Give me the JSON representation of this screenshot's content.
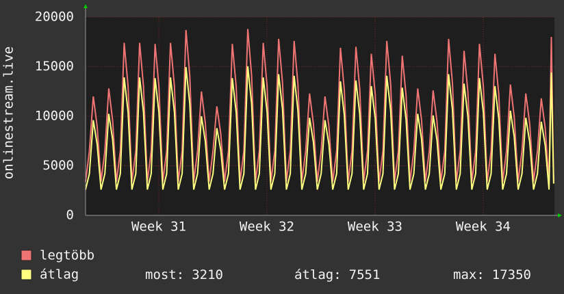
{
  "chart_data": {
    "type": "line",
    "y_label": "onlinestream.live",
    "x": [
      0,
      0.25,
      0.5,
      0.75,
      1,
      1.25,
      1.5,
      1.75,
      2,
      2.25,
      2.5,
      2.75,
      3,
      3.25,
      3.5,
      3.75,
      4,
      4.25,
      4.5,
      4.75,
      5,
      5.25,
      5.5,
      5.75,
      6,
      6.25,
      6.5,
      6.75,
      7,
      7.25,
      7.5,
      7.75,
      8,
      8.25,
      8.5,
      8.75,
      9,
      9.25,
      9.5,
      9.75,
      10,
      10.25,
      10.5,
      10.75,
      11,
      11.25,
      11.5,
      11.75,
      12,
      12.25,
      12.5,
      12.75,
      13,
      13.25,
      13.5,
      13.75,
      14,
      14.25,
      14.5,
      14.75,
      15,
      15.25,
      15.5,
      15.75,
      16,
      16.25,
      16.5,
      16.75,
      17,
      17.25,
      17.5,
      17.75,
      18,
      18.25,
      18.5,
      18.75,
      19,
      19.25,
      19.5,
      19.75,
      20,
      20.25,
      20.5,
      20.75,
      21,
      21.25,
      21.5,
      21.75,
      22,
      22.25,
      22.5,
      22.75,
      23,
      23.25,
      23.5,
      23.75,
      24,
      24.25,
      24.5,
      24.75,
      25,
      25.25,
      25.5,
      25.75,
      26,
      26.25,
      26.5,
      26.75,
      27,
      27.25,
      27.5,
      27.75,
      28,
      28.25,
      28.5,
      28.75,
      29,
      29.25,
      29.5,
      29.75,
      30,
      30.15,
      30.3
    ],
    "series": [
      {
        "name": "legtöbb",
        "color": "#f07474",
        "values": [
          3400,
          6500,
          12000,
          9000,
          3400,
          6500,
          12800,
          9600,
          3400,
          6500,
          17400,
          13050,
          3400,
          6500,
          17400,
          13050,
          3400,
          6500,
          17300,
          12975,
          3400,
          6500,
          17400,
          13050,
          3400,
          6500,
          18700,
          14025,
          3400,
          6500,
          12500,
          9375,
          3400,
          6500,
          11000,
          8250,
          3400,
          6500,
          17300,
          12975,
          3400,
          6500,
          18800,
          14100,
          3400,
          6500,
          17400,
          13050,
          3400,
          6500,
          17800,
          13350,
          3400,
          6500,
          17600,
          13200,
          3400,
          6500,
          12300,
          9225,
          3400,
          6500,
          12000,
          9000,
          3400,
          6500,
          16900,
          12675,
          3400,
          6500,
          17000,
          12750,
          3400,
          6500,
          16300,
          12225,
          3400,
          6500,
          17600,
          13200,
          3400,
          6500,
          16100,
          12075,
          3400,
          6500,
          12800,
          9600,
          3400,
          6500,
          12600,
          9450,
          3400,
          6500,
          17800,
          13350,
          3400,
          6500,
          16600,
          12450,
          3400,
          6500,
          17300,
          12975,
          3400,
          6500,
          16300,
          12225,
          3400,
          6500,
          13200,
          9900,
          3400,
          6500,
          12300,
          9225,
          3400,
          6500,
          11800,
          8850,
          3400,
          18000,
          3300
        ]
      },
      {
        "name": "átlag",
        "color": "#ffff80",
        "values": [
          2600,
          4200,
          9600,
          7200,
          2600,
          4200,
          10240,
          7680,
          2600,
          4200,
          13920,
          10440,
          2600,
          4200,
          13920,
          10440,
          2600,
          4200,
          13840,
          10380,
          2600,
          4200,
          13920,
          10440,
          2600,
          4200,
          14960,
          11220,
          2600,
          4200,
          10000,
          7500,
          2600,
          4200,
          8800,
          6600,
          2600,
          4200,
          13840,
          10380,
          2600,
          4200,
          15040,
          11280,
          2600,
          4200,
          13920,
          10440,
          2600,
          4200,
          14240,
          10680,
          2600,
          4200,
          14080,
          10560,
          2600,
          4200,
          9840,
          7380,
          2600,
          4200,
          9600,
          7200,
          2600,
          4200,
          13520,
          10140,
          2600,
          4200,
          13600,
          10200,
          2600,
          4200,
          13040,
          9780,
          2600,
          4200,
          14080,
          10560,
          2600,
          4200,
          12880,
          9660,
          2600,
          4200,
          10240,
          7680,
          2600,
          4200,
          10080,
          7560,
          2600,
          4200,
          14240,
          10680,
          2600,
          4200,
          13280,
          9960,
          2600,
          4200,
          13840,
          10380,
          2600,
          4200,
          13040,
          9780,
          2600,
          4200,
          10560,
          7920,
          2600,
          4200,
          9840,
          7380,
          2600,
          4200,
          9440,
          7080,
          2600,
          14400,
          3210
        ]
      }
    ],
    "xlim": [
      0,
      30.35
    ],
    "xticks": [
      {
        "value": 4.74,
        "label": "Week 31"
      },
      {
        "value": 11.74,
        "label": "Week 32"
      },
      {
        "value": 18.74,
        "label": "Week 33"
      },
      {
        "value": 25.74,
        "label": "Week 34"
      }
    ],
    "ylim": [
      0,
      20000
    ],
    "yticks": [
      0,
      5000,
      10000,
      15000,
      20000
    ],
    "grid": true,
    "stats": [
      {
        "label": "most:",
        "value": 3210
      },
      {
        "label": "átlag:",
        "value": 7551
      },
      {
        "label": "max:",
        "value": 17350
      }
    ]
  }
}
